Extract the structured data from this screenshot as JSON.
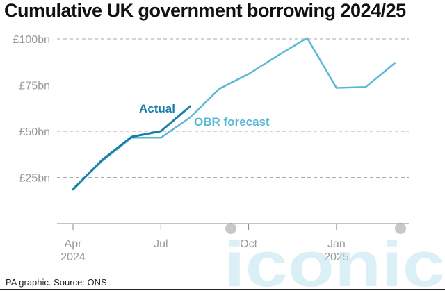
{
  "title": "Cumulative UK government borrowing 2024/25",
  "source": "PA graphic. Source: ONS",
  "watermark": "iconic",
  "colors": {
    "actual": "#1a7fa8",
    "forecast": "#5ab8d6",
    "grid": "#aaaaaa",
    "axis_text": "#999999"
  },
  "chart_data": {
    "type": "line",
    "ylim": [
      0,
      100
    ],
    "yticks": [
      {
        "value": 25,
        "label": "£25bn"
      },
      {
        "value": 50,
        "label": "£50bn"
      },
      {
        "value": 75,
        "label": "£75bn"
      },
      {
        "value": 100,
        "label": "£100bn"
      }
    ],
    "x_months": [
      "Apr 2024",
      "May 2024",
      "Jun 2024",
      "Jul 2024",
      "Aug 2024",
      "Sep 2024",
      "Oct 2024",
      "Nov 2024",
      "Dec 2024",
      "Jan 2025",
      "Feb 2025",
      "Mar 2025"
    ],
    "xticks": [
      {
        "month": "Apr 2024",
        "label1": "Apr",
        "label2": "2024"
      },
      {
        "month": "Jul 2024",
        "label1": "Jul",
        "label2": ""
      },
      {
        "month": "Oct 2024",
        "label1": "Oct",
        "label2": ""
      },
      {
        "month": "Jan 2025",
        "label1": "Jan",
        "label2": "2025"
      }
    ],
    "series": [
      {
        "name": "Actual",
        "color": "#1a7fa8",
        "values": [
          18.5,
          34.5,
          47,
          50,
          63.5
        ]
      },
      {
        "name": "OBR forecast",
        "color": "#5ab8d6",
        "values": [
          19,
          34,
          46.5,
          46.5,
          57.5,
          73,
          81,
          91,
          100.5,
          73.5,
          74,
          87
        ]
      }
    ]
  }
}
